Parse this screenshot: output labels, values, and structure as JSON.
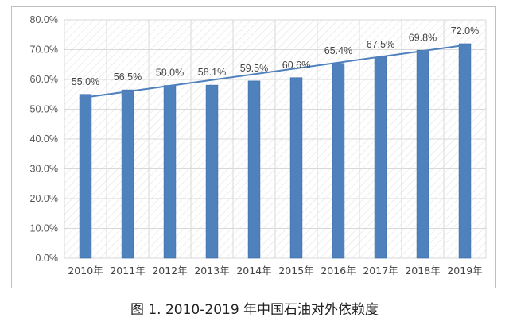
{
  "chart_data": {
    "type": "bar",
    "title": "",
    "xlabel": "",
    "ylabel": "",
    "categories": [
      "2010年",
      "2011年",
      "2012年",
      "2013年",
      "2014年",
      "2015年",
      "2016年",
      "2017年",
      "2018年",
      "2019年"
    ],
    "values": [
      55.0,
      56.5,
      58.0,
      58.1,
      59.5,
      60.6,
      65.4,
      67.5,
      69.8,
      72.0
    ],
    "data_labels": [
      "55.0%",
      "56.5%",
      "58.0%",
      "58.1%",
      "59.5%",
      "60.6%",
      "65.4%",
      "67.5%",
      "69.8%",
      "72.0%"
    ],
    "y_ticks": [
      "0.0%",
      "10.0%",
      "20.0%",
      "30.0%",
      "40.0%",
      "50.0%",
      "60.0%",
      "70.0%",
      "80.0%"
    ],
    "ylim": [
      0,
      80
    ],
    "unit": "%",
    "trendline": {
      "type": "linear",
      "start": 54.0,
      "end": 71.5
    },
    "plot_background": "diagonal-hatch",
    "grid": "horizontal",
    "legend": "none",
    "colors": {
      "bar": "#4f81bd",
      "bar_border": "#3a6aa6",
      "trendline": "#4f81bd",
      "grid": "#d9d9d9",
      "hatch": "#e3e3e3"
    }
  },
  "caption": "图 1. 2010-2019 年中国石油对外依赖度"
}
